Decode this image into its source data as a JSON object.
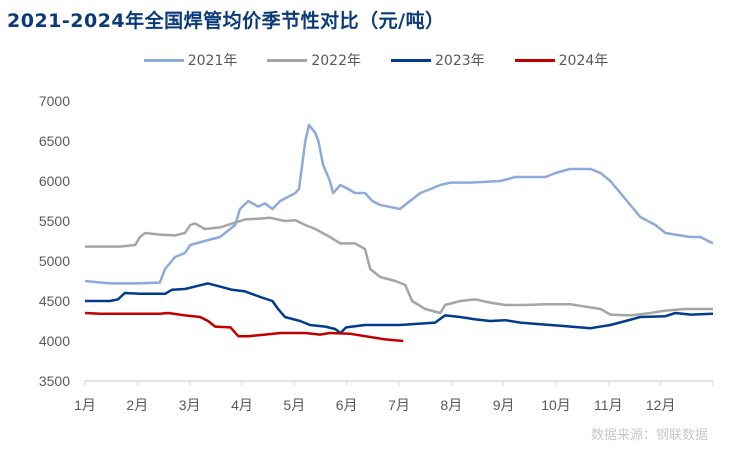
{
  "chart_data": {
    "type": "line",
    "title": "2021-2024年全国焊管均价季节性对比（元/吨）",
    "xlabel": "",
    "ylabel": "",
    "ylim": [
      3500,
      7000
    ],
    "yticks": [
      3500,
      4000,
      4500,
      5000,
      5500,
      6000,
      6500,
      7000
    ],
    "xlim": [
      1,
      13
    ],
    "xtick_labels": [
      "1月",
      "2月",
      "3月",
      "4月",
      "5月",
      "6月",
      "7月",
      "8月",
      "9月",
      "10月",
      "11月",
      "12月"
    ],
    "grid": false,
    "legend_position": "top",
    "series": [
      {
        "name": "2021年",
        "color": "#8eaadb",
        "x": [
          1.0,
          1.48,
          1.96,
          2.43,
          2.53,
          2.72,
          2.91,
          3.01,
          3.29,
          3.58,
          3.87,
          3.96,
          4.12,
          4.31,
          4.44,
          4.58,
          4.73,
          5.02,
          5.09,
          5.21,
          5.28,
          5.4,
          5.46,
          5.55,
          5.68,
          5.74,
          5.88,
          6.03,
          6.16,
          6.35,
          6.49,
          6.64,
          7.02,
          7.21,
          7.41,
          7.6,
          7.79,
          7.98,
          8.36,
          8.94,
          9.22,
          9.8,
          9.99,
          10.27,
          10.66,
          10.85,
          11.04,
          11.23,
          11.42,
          11.61,
          11.9,
          12.09,
          12.37,
          12.57,
          12.76,
          12.91,
          13.0
        ],
        "y": [
          4750,
          4720,
          4720,
          4730,
          4900,
          5050,
          5100,
          5200,
          5250,
          5300,
          5450,
          5650,
          5750,
          5680,
          5720,
          5650,
          5750,
          5850,
          5900,
          6500,
          6700,
          6600,
          6500,
          6200,
          6000,
          5850,
          5950,
          5900,
          5850,
          5850,
          5750,
          5700,
          5650,
          5750,
          5850,
          5900,
          5950,
          5980,
          5980,
          6000,
          6050,
          6050,
          6100,
          6150,
          6150,
          6100,
          6000,
          5850,
          5700,
          5550,
          5450,
          5350,
          5320,
          5300,
          5300,
          5250,
          5220
        ]
      },
      {
        "name": "2022年",
        "color": "#a5a5a5",
        "x": [
          1.0,
          1.67,
          1.96,
          2.05,
          2.15,
          2.43,
          2.72,
          2.91,
          3.01,
          3.1,
          3.29,
          3.58,
          3.87,
          4.06,
          4.35,
          4.54,
          4.82,
          5.02,
          5.21,
          5.4,
          5.68,
          5.88,
          6.16,
          6.35,
          6.45,
          6.64,
          6.93,
          7.12,
          7.25,
          7.5,
          7.79,
          7.88,
          8.17,
          8.46,
          8.74,
          9.03,
          9.41,
          9.8,
          10.27,
          10.85,
          11.04,
          11.42,
          11.8,
          12.09,
          12.47,
          13.0
        ],
        "y": [
          5180,
          5180,
          5200,
          5300,
          5350,
          5330,
          5320,
          5350,
          5450,
          5470,
          5400,
          5420,
          5480,
          5520,
          5530,
          5540,
          5500,
          5510,
          5450,
          5400,
          5300,
          5220,
          5220,
          5150,
          4900,
          4800,
          4750,
          4700,
          4500,
          4400,
          4350,
          4450,
          4500,
          4520,
          4480,
          4450,
          4450,
          4460,
          4460,
          4400,
          4330,
          4320,
          4350,
          4380,
          4400,
          4400
        ]
      },
      {
        "name": "2023年",
        "color": "#003c8a",
        "x": [
          1.0,
          1.48,
          1.63,
          1.76,
          2.05,
          2.53,
          2.66,
          2.91,
          3.16,
          3.35,
          3.58,
          3.81,
          4.06,
          4.35,
          4.58,
          4.69,
          4.82,
          5.11,
          5.3,
          5.59,
          5.78,
          5.88,
          5.99,
          6.35,
          6.74,
          7.02,
          7.69,
          7.88,
          8.17,
          8.46,
          8.74,
          9.03,
          9.32,
          9.7,
          10.08,
          10.66,
          11.04,
          11.33,
          11.61,
          12.09,
          12.28,
          12.57,
          13.0
        ],
        "y": [
          4500,
          4500,
          4520,
          4600,
          4590,
          4590,
          4640,
          4650,
          4690,
          4720,
          4680,
          4640,
          4620,
          4550,
          4500,
          4400,
          4300,
          4250,
          4200,
          4180,
          4150,
          4100,
          4170,
          4200,
          4200,
          4200,
          4230,
          4320,
          4300,
          4270,
          4250,
          4260,
          4230,
          4210,
          4190,
          4160,
          4200,
          4250,
          4300,
          4310,
          4350,
          4330,
          4340
        ]
      },
      {
        "name": "2024年",
        "color": "#c00000",
        "x": [
          1.0,
          1.29,
          2.43,
          2.59,
          2.91,
          3.2,
          3.35,
          3.49,
          3.78,
          3.93,
          4.12,
          4.44,
          4.73,
          5.21,
          5.49,
          5.68,
          6.07,
          6.45,
          6.74,
          7.08
        ],
        "y": [
          4350,
          4340,
          4340,
          4350,
          4320,
          4300,
          4250,
          4180,
          4170,
          4060,
          4060,
          4080,
          4100,
          4100,
          4080,
          4100,
          4090,
          4050,
          4020,
          4000
        ]
      }
    ]
  },
  "source": "数据来源：钢联数据"
}
